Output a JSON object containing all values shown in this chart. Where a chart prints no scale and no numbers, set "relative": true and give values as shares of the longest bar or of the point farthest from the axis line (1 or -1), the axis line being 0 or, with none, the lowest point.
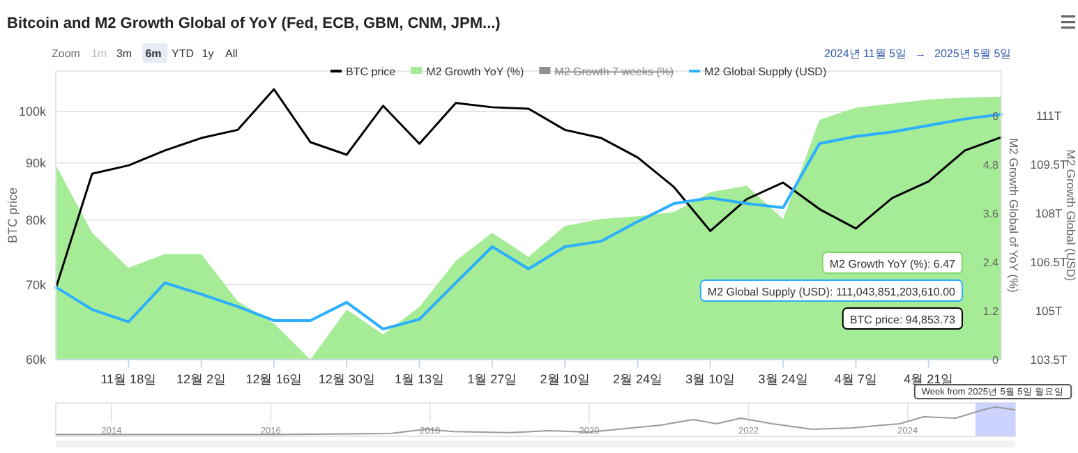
{
  "chart_data": [
    {
      "type": "line",
      "title": "Bitcoin and M2 Growth Global of YoY (Fed, ECB, GBM, CNM, JPM...)",
      "x": [
        "2024-11-04",
        "2024-11-11",
        "2024-11-18",
        "2024-11-25",
        "2024-12-02",
        "2024-12-09",
        "2024-12-16",
        "2024-12-23",
        "2024-12-30",
        "2025-01-06",
        "2025-01-13",
        "2025-01-20",
        "2025-01-27",
        "2025-02-03",
        "2025-02-10",
        "2025-02-17",
        "2025-02-24",
        "2025-03-03",
        "2025-03-10",
        "2025-03-17",
        "2025-03-24",
        "2025-03-31",
        "2025-04-07",
        "2025-04-14",
        "2025-04-21",
        "2025-04-28",
        "2025-05-05"
      ],
      "series": [
        {
          "name": "BTC price",
          "color": "#000000",
          "values": [
            69500,
            88000,
            89500,
            92300,
            94700,
            96300,
            104700,
            93900,
            91500,
            101200,
            93600,
            101800,
            100900,
            100600,
            96300,
            94700,
            91000,
            85600,
            78200,
            83500,
            86400,
            81800,
            78600,
            83700,
            86600,
            92300,
            94853.73
          ]
        },
        {
          "name": "M2 Growth YoY (%)",
          "type": "area",
          "axis": "y2",
          "color": "#a6ec97",
          "values": [
            4.79,
            3.12,
            2.26,
            2.6,
            2.6,
            1.44,
            0.89,
            0,
            1.23,
            0.62,
            1.3,
            2.43,
            3.12,
            2.53,
            3.29,
            3.46,
            3.53,
            3.63,
            4.12,
            4.28,
            3.46,
            5.9,
            6.2,
            6.3,
            6.4,
            6.45,
            6.47
          ]
        },
        {
          "name": "M2 Growth 7 weeks (%)",
          "type": "area",
          "axis": "y2",
          "color": "#909090",
          "values": [
            null,
            null,
            null,
            null,
            null,
            null,
            null,
            null,
            null,
            null,
            null,
            null,
            null,
            null,
            null,
            null,
            null,
            null,
            null,
            null,
            null,
            null,
            null,
            null,
            null,
            null,
            null
          ]
        },
        {
          "name": "M2 Global Supply (USD)",
          "axis": "y3",
          "color": "#2caffe",
          "values": [
            105.73,
            105.04,
            104.66,
            105.86,
            105.51,
            105.13,
            104.7,
            104.7,
            105.26,
            104.44,
            104.74,
            105.86,
            106.97,
            106.29,
            106.97,
            107.14,
            107.74,
            108.3,
            108.47,
            108.3,
            108.17,
            110.14,
            110.36,
            110.5,
            110.7,
            110.9,
            111.04
          ]
        }
      ],
      "xlim": [
        "2024-11-04",
        "2025-05-05"
      ],
      "xticks": [
        {
          "value": "2024-11-18",
          "label": "11월 18일"
        },
        {
          "value": "2024-12-02",
          "label": "12월 2일"
        },
        {
          "value": "2024-12-16",
          "label": "12월 16일"
        },
        {
          "value": "2024-12-30",
          "label": "12월 30일"
        },
        {
          "value": "2025-01-13",
          "label": "1월 13일"
        },
        {
          "value": "2025-01-27",
          "label": "1월 27일"
        },
        {
          "value": "2025-02-10",
          "label": "2월 10일"
        },
        {
          "value": "2025-02-24",
          "label": "2월 24일"
        },
        {
          "value": "2025-03-10",
          "label": "3월 10일"
        },
        {
          "value": "2025-03-24",
          "label": "3월 24일"
        },
        {
          "value": "2025-04-07",
          "label": "4월 7일"
        },
        {
          "value": "2025-04-21",
          "label": "4월 21일"
        }
      ],
      "ylabel": "BTC price",
      "log": "y",
      "ylim": [
        60000,
        108700
      ],
      "yticks": [
        {
          "value": 60000,
          "label": "60k"
        },
        {
          "value": 70000,
          "label": "70k"
        },
        {
          "value": 80000,
          "label": "80k"
        },
        {
          "value": 90000,
          "label": "90k"
        },
        {
          "value": 100000,
          "label": "100k"
        }
      ],
      "y2label": "M2 Growth Global of YoY (%)",
      "y2lim": [
        0,
        7.1
      ],
      "y2ticks": [
        0,
        1.2,
        2.4,
        3.6,
        4.8,
        6
      ],
      "y3label": "M2 Growth Global (USD)",
      "y3lim": [
        103.5,
        112.37
      ],
      "y3ticks": [
        {
          "value": 103.5,
          "label": "103.5T"
        },
        {
          "value": 105,
          "label": "105T"
        },
        {
          "value": 106.5,
          "label": "106.5T"
        },
        {
          "value": 108,
          "label": "108T"
        },
        {
          "value": 109.5,
          "label": "109.5T"
        },
        {
          "value": 111,
          "label": "111T"
        }
      ],
      "grid": "y",
      "legend": "top",
      "annotations": [
        "Zoom",
        "1m",
        "3m",
        "6m",
        "YTD",
        "1y",
        "All",
        "2024년 11월 5일",
        "→",
        "2025년 5월 5일",
        "M2 Growth YoY (%): 6.47",
        "M2 Global Supply (USD): 111,043,851,203,610.00",
        "BTC price: 94,853.73",
        "Week from 2025년 5월 5일 월요일"
      ]
    },
    {
      "type": "line",
      "relative": true,
      "color": "#9a9a9a",
      "x": [
        2013.3,
        2016.0,
        2017.5,
        2017.95,
        2018.3,
        2019.0,
        2019.5,
        2020.0,
        2020.9,
        2021.3,
        2021.6,
        2021.9,
        2022.3,
        2022.8,
        2023.3,
        2023.9,
        2024.2,
        2024.6,
        2024.95,
        2025.1,
        2025.35
      ],
      "values": [
        0.01,
        0.01,
        0.05,
        0.2,
        0.12,
        0.08,
        0.15,
        0.1,
        0.35,
        0.55,
        0.4,
        0.6,
        0.4,
        0.2,
        0.25,
        0.4,
        0.65,
        0.6,
        0.9,
        1.0,
        0.9
      ],
      "xlim": [
        2013.3,
        2025.35
      ],
      "xticks": [
        2014,
        2016,
        2018,
        2020,
        2022,
        2024
      ],
      "grid": "x",
      "bands": [
        {
          "axis": "x",
          "from": 2024.85,
          "to": 2025.35,
          "color": "#ccd3ff"
        }
      ]
    }
  ]
}
